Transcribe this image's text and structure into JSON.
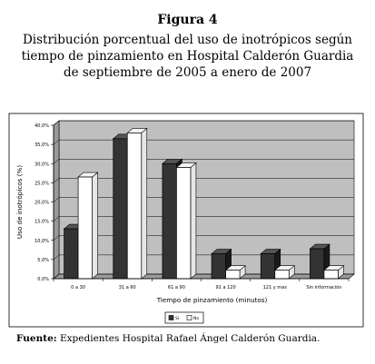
{
  "figure": {
    "label": "Figura 4",
    "title": "Distribución porcentual del uso de inotrópicos según tiempo de pinzamiento en Hospital Calderón Guardia de septiembre de 2005 a enero de 2007",
    "source_label": "Fuente:",
    "source_text": " Expedientes Hospital Rafael Ángel Calderón Guardia."
  },
  "chart_data": {
    "type": "bar",
    "xlabel": "Tiempo de pinzamiento (minutos)",
    "ylabel": "Uso de inotrópicos (%)",
    "ylim": [
      0,
      40
    ],
    "yticks": [
      "0,0%",
      "5,0%",
      "10,0%",
      "15,0%",
      "20,0%",
      "25,0%",
      "30,0%",
      "35,0%",
      "40,0%"
    ],
    "categories": [
      "0 a 30",
      "31 a 60",
      "61 a 90",
      "91 a 120",
      "121 y mas",
      "Sin información"
    ],
    "series": [
      {
        "name": "Sí",
        "color": "#333333",
        "values": [
          13.0,
          36.5,
          30.0,
          6.5,
          6.5,
          7.8
        ]
      },
      {
        "name": "No",
        "color": "#ffffff",
        "values": [
          26.5,
          38.0,
          29.0,
          2.2,
          2.2,
          2.2
        ]
      }
    ],
    "grid": true,
    "legend_position": "bottom"
  }
}
